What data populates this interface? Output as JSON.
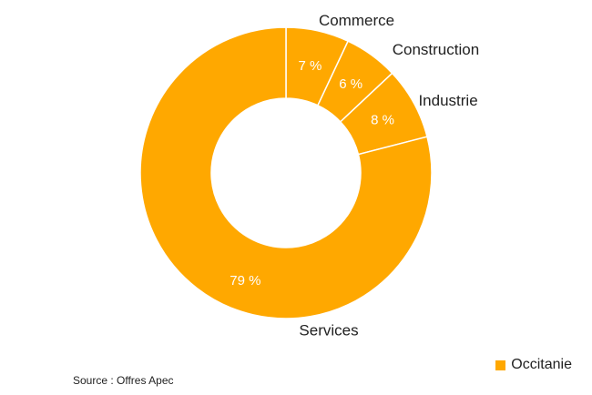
{
  "chart_data": {
    "type": "pie",
    "subtype": "donut",
    "title": "",
    "slices": [
      {
        "name": "Commerce",
        "value": 7,
        "label": "7 %"
      },
      {
        "name": "Construction",
        "value": 6,
        "label": "6 %"
      },
      {
        "name": "Industrie",
        "value": 8,
        "label": "8 %"
      },
      {
        "name": "Services",
        "value": 79,
        "label": "79 %"
      }
    ],
    "series_name": "Occitanie",
    "color": "#FFA800",
    "separator_color": "#ffffff",
    "legend": {
      "label": "Occitanie",
      "position": "bottom-right"
    }
  },
  "source": "Source : Offres Apec"
}
